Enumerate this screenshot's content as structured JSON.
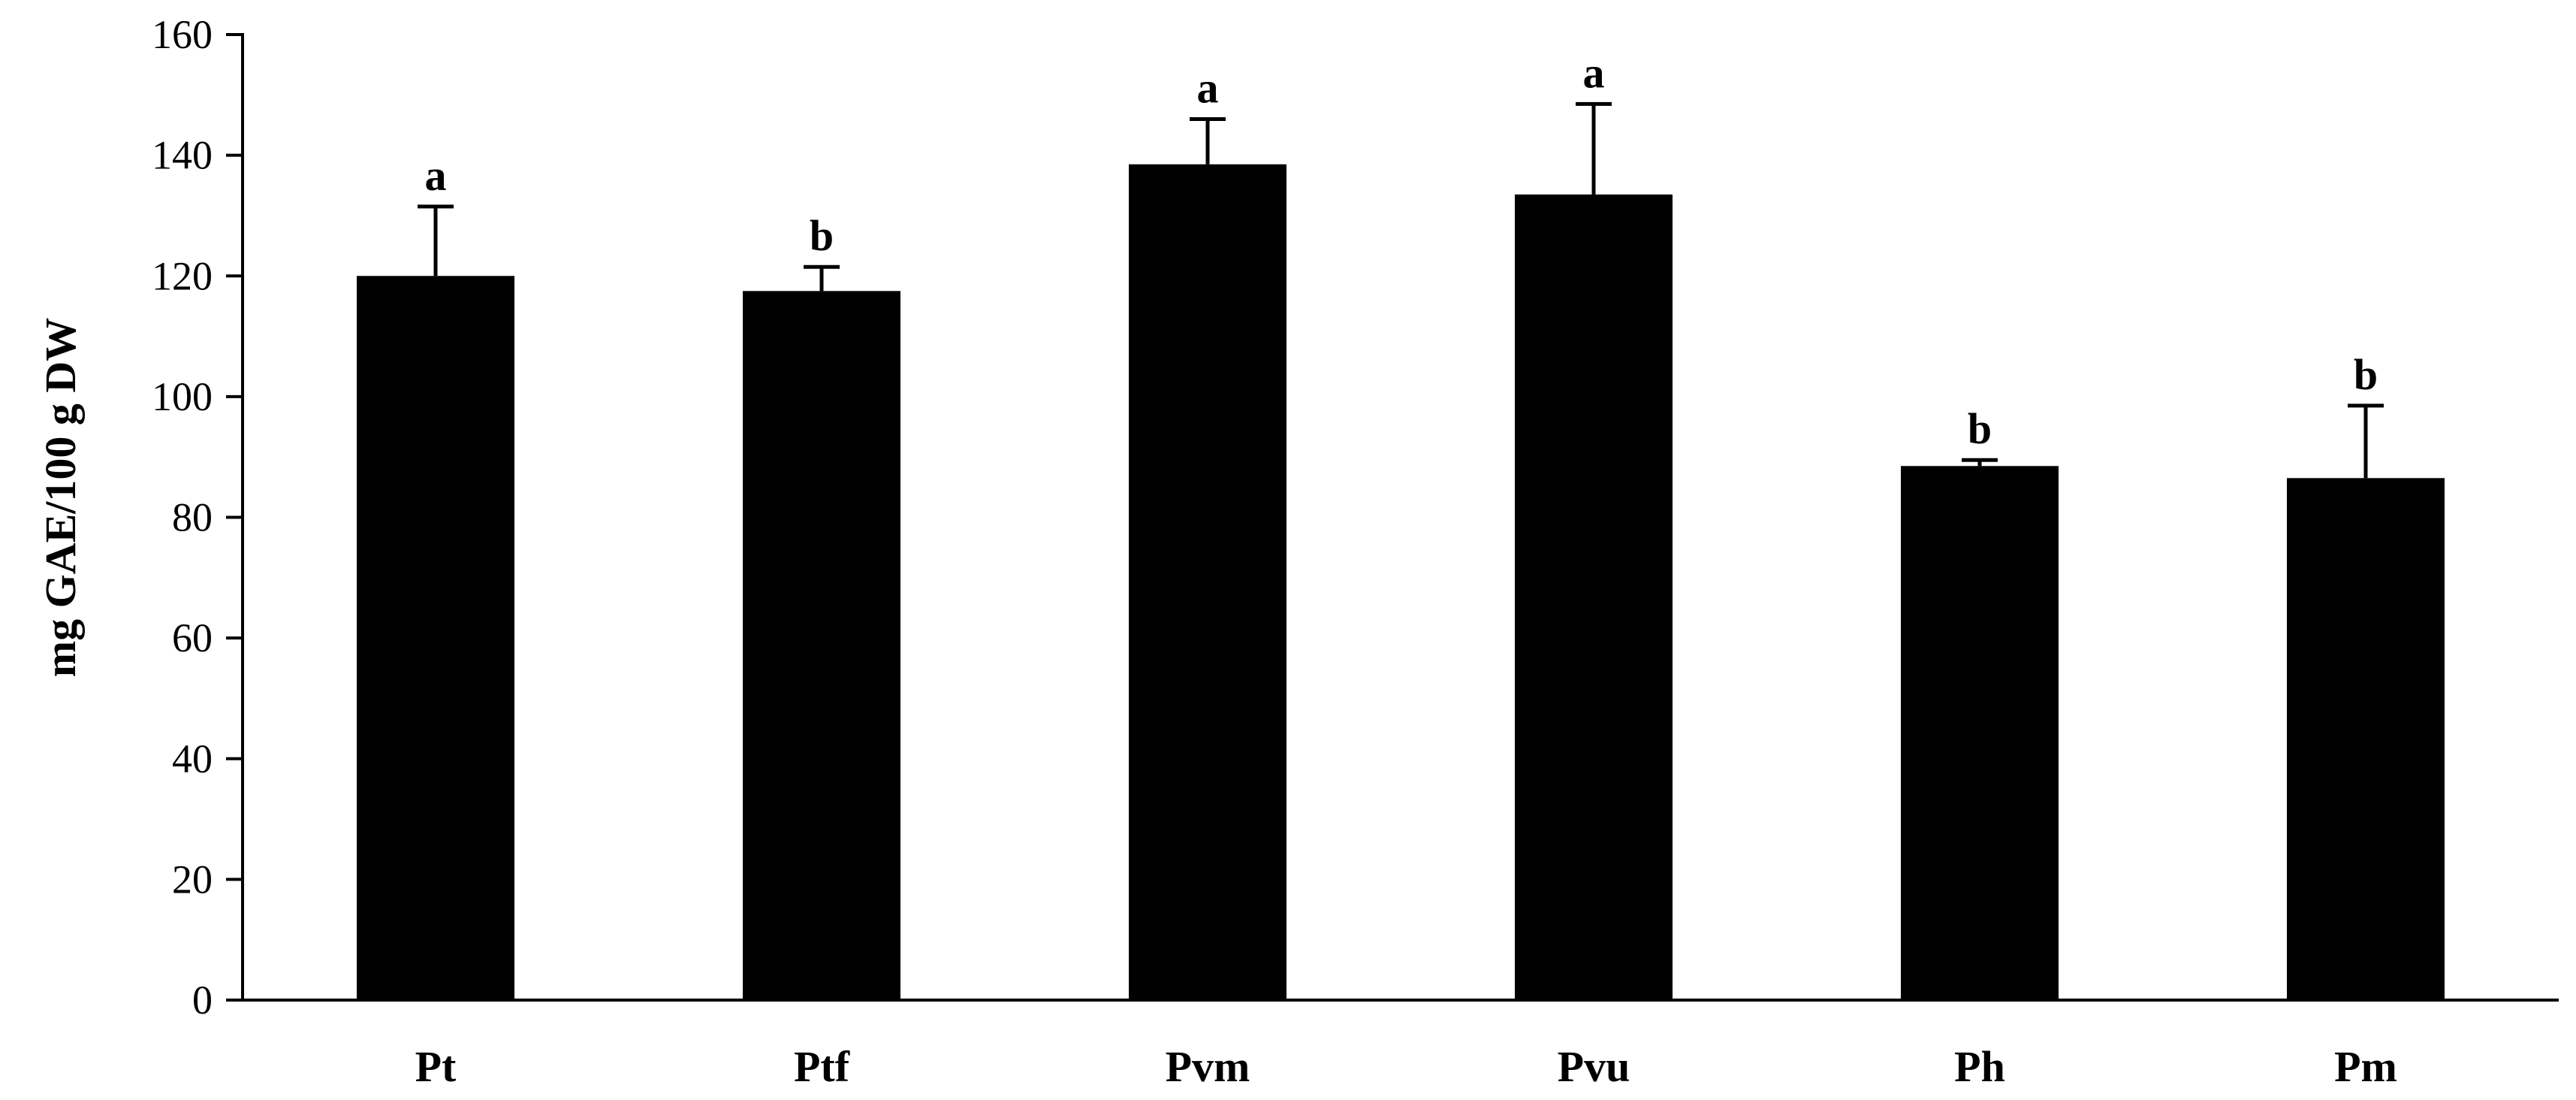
{
  "chart_data": {
    "type": "bar",
    "title": "",
    "xlabel": "",
    "ylabel": "mg GAE/100 g DW",
    "ylim": [
      0,
      160
    ],
    "yticks": [
      0,
      20,
      40,
      60,
      80,
      100,
      120,
      140,
      160
    ],
    "grid": false,
    "legend": "none",
    "categories": [
      "Pt",
      "Ptf",
      "Pvm",
      "Pvu",
      "Ph",
      "Pm"
    ],
    "series": [
      {
        "values": [
          120,
          117.5,
          138.5,
          133.5,
          88.5,
          86.5
        ],
        "error": [
          11.5,
          4,
          7.5,
          15,
          1,
          12
        ],
        "labels": [
          "a",
          "b",
          "a",
          "a",
          "b",
          "b"
        ]
      }
    ],
    "colors": {
      "bar": "#000000",
      "axis": "#000000",
      "background": "#ffffff"
    }
  }
}
